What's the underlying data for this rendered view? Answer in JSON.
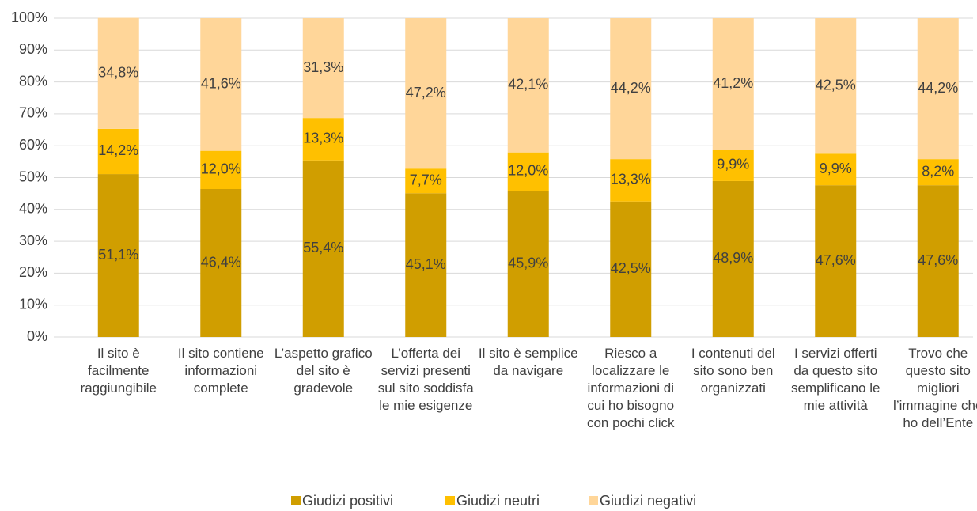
{
  "chart_data": {
    "type": "stacked_bar",
    "categories": [
      "Il sito è facilmente raggiungibile",
      "Il sito contiene informazioni complete",
      "L’aspetto grafico del sito è gradevole",
      "L’offerta dei servizi presenti sul sito soddisfa le mie esigenze",
      "Il sito è semplice da navigare",
      "Riesco a localizzare le informazioni di cui ho bisogno con pochi click",
      "I contenuti del sito sono ben organizzati",
      "I servizi offerti da questo sito semplificano le mie attività",
      "Trovo che questo sito migliori l’immagine che ho dell’Ente"
    ],
    "series": [
      {
        "name": "Giudizi positivi",
        "color": "#d09e00",
        "values": [
          51.1,
          46.4,
          55.4,
          45.1,
          45.9,
          42.5,
          48.9,
          47.6,
          47.6
        ],
        "value_labels": [
          "51,1%",
          "46,4%",
          "55,4%",
          "45,1%",
          "45,9%",
          "42,5%",
          "48,9%",
          "47,6%",
          "47,6%"
        ]
      },
      {
        "name": "Giudizi neutri",
        "color": "#ffc000",
        "values": [
          14.2,
          12.0,
          13.3,
          7.7,
          12.0,
          13.3,
          9.9,
          9.9,
          8.2
        ],
        "value_labels": [
          "14,2%",
          "12,0%",
          "13,3%",
          "7,7%",
          "12,0%",
          "13,3%",
          "9,9%",
          "9,9%",
          "8,2%"
        ]
      },
      {
        "name": "Giudizi negativi",
        "color": "#ffd699",
        "values": [
          34.8,
          41.6,
          31.3,
          47.2,
          42.1,
          44.2,
          41.2,
          42.5,
          44.2
        ],
        "value_labels": [
          "34,8%",
          "41,6%",
          "31,3%",
          "47,2%",
          "42,1%",
          "44,2%",
          "41,2%",
          "42,5%",
          "44,2%"
        ]
      }
    ],
    "ylim": [
      0,
      100
    ],
    "yticks": [
      {
        "value": 0,
        "label": "0%"
      },
      {
        "value": 10,
        "label": "10%"
      },
      {
        "value": 20,
        "label": "20%"
      },
      {
        "value": 30,
        "label": "30%"
      },
      {
        "value": 40,
        "label": "40%"
      },
      {
        "value": 50,
        "label": "50%"
      },
      {
        "value": 60,
        "label": "60%"
      },
      {
        "value": 70,
        "label": "70%"
      },
      {
        "value": 80,
        "label": "80%"
      },
      {
        "value": 90,
        "label": "90%"
      },
      {
        "value": 100,
        "label": "100%"
      }
    ],
    "grid": true,
    "legend": "bottom"
  }
}
